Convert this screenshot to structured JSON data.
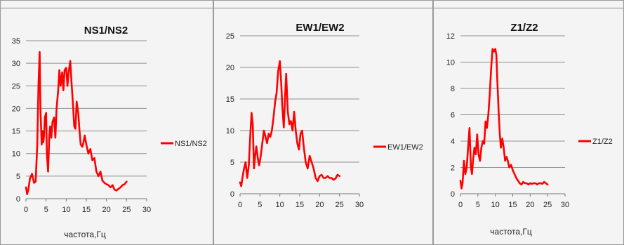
{
  "chart_data": [
    {
      "type": "line",
      "title": "NS1/NS2",
      "xlabel": "частота,Гц",
      "ylabel": "",
      "xlim": [
        0,
        30
      ],
      "ylim": [
        0,
        35
      ],
      "xticks": [
        0,
        5,
        10,
        15,
        20,
        25,
        30
      ],
      "yticks": [
        0,
        5,
        10,
        15,
        20,
        25,
        30,
        35
      ],
      "grid": true,
      "legend": "right",
      "series": [
        {
          "name": "NS1/NS2",
          "color": "#ff0000",
          "x": [
            0.0,
            0.3,
            0.6,
            1.0,
            1.5,
            2.0,
            2.4,
            2.8,
            3.1,
            3.4,
            3.6,
            3.9,
            4.1,
            4.3,
            4.5,
            4.7,
            5.0,
            5.2,
            5.5,
            5.8,
            6.0,
            6.3,
            6.6,
            7.0,
            7.3,
            7.6,
            8.0,
            8.3,
            8.6,
            9.0,
            9.3,
            9.6,
            10.0,
            10.3,
            10.6,
            11.0,
            11.3,
            11.6,
            12.0,
            12.3,
            12.6,
            13.0,
            13.3,
            13.6,
            14.0,
            14.3,
            14.6,
            15.0,
            15.5,
            16.0,
            16.5,
            17.0,
            17.5,
            18.0,
            18.5,
            19.0,
            19.5,
            20.0,
            20.5,
            21.0,
            21.5,
            22.0,
            22.5,
            23.0,
            23.5,
            24.0,
            24.5,
            25.0
          ],
          "values": [
            2.5,
            1.0,
            2.0,
            4.5,
            5.5,
            3.5,
            3.8,
            12.0,
            25.0,
            32.5,
            20.0,
            12.0,
            15.0,
            12.5,
            14.0,
            18.0,
            19.0,
            10.0,
            6.0,
            14.0,
            16.0,
            13.5,
            17.0,
            18.0,
            13.5,
            20.0,
            24.0,
            28.5,
            25.0,
            28.0,
            24.0,
            28.5,
            29.0,
            25.0,
            28.0,
            30.5,
            26.0,
            22.0,
            16.0,
            15.5,
            21.5,
            19.0,
            15.0,
            12.0,
            11.5,
            12.5,
            14.0,
            12.0,
            10.0,
            11.0,
            8.5,
            9.0,
            6.0,
            5.0,
            6.0,
            4.0,
            3.5,
            3.2,
            3.0,
            2.5,
            3.0,
            2.0,
            1.8,
            2.2,
            2.5,
            3.0,
            3.2,
            3.8
          ]
        }
      ]
    },
    {
      "type": "line",
      "title": "EW1/EW2",
      "xlabel": "",
      "ylabel": "",
      "xlim": [
        0,
        30
      ],
      "ylim": [
        0,
        25
      ],
      "xticks": [
        0,
        5,
        10,
        15,
        20,
        25,
        30
      ],
      "yticks": [
        0,
        5,
        10,
        15,
        20,
        25
      ],
      "grid": true,
      "legend": "right",
      "series": [
        {
          "name": "EW1/EW2",
          "color": "#ff0000",
          "x": [
            0.0,
            0.3,
            0.6,
            1.0,
            1.4,
            1.8,
            2.2,
            2.5,
            2.9,
            3.2,
            3.5,
            3.8,
            4.1,
            4.5,
            4.8,
            5.2,
            5.6,
            6.0,
            6.4,
            6.8,
            7.2,
            7.6,
            8.0,
            8.4,
            8.8,
            9.2,
            9.6,
            10.0,
            10.3,
            10.6,
            11.0,
            11.3,
            11.6,
            12.0,
            12.4,
            12.8,
            13.2,
            13.6,
            14.0,
            14.4,
            14.8,
            15.2,
            15.6,
            16.0,
            16.5,
            17.0,
            17.5,
            18.0,
            18.5,
            19.0,
            19.5,
            20.0,
            20.5,
            21.0,
            21.5,
            22.0,
            22.5,
            23.0,
            23.5,
            24.0,
            24.5,
            25.0
          ],
          "values": [
            1.8,
            1.2,
            2.5,
            4.0,
            5.0,
            2.5,
            4.5,
            8.5,
            12.8,
            11.0,
            4.0,
            6.0,
            7.5,
            5.5,
            4.5,
            6.0,
            8.0,
            10.0,
            9.0,
            8.0,
            9.5,
            9.0,
            10.0,
            12.0,
            14.5,
            16.0,
            19.5,
            21.0,
            18.0,
            14.0,
            10.5,
            15.0,
            19.0,
            13.0,
            11.0,
            11.5,
            10.0,
            13.0,
            10.0,
            8.0,
            7.0,
            9.5,
            10.0,
            7.5,
            5.0,
            4.0,
            6.0,
            5.0,
            4.0,
            2.5,
            2.0,
            2.8,
            3.0,
            2.5,
            2.5,
            2.8,
            2.5,
            2.5,
            2.2,
            2.4,
            3.0,
            2.8
          ]
        }
      ]
    },
    {
      "type": "line",
      "title": "Z1/Z2",
      "xlabel": "частота,Гц",
      "ylabel": "",
      "xlim": [
        0,
        30
      ],
      "ylim": [
        0,
        12
      ],
      "xticks": [
        0,
        5,
        10,
        15,
        20,
        25,
        30
      ],
      "yticks": [
        0,
        2,
        4,
        6,
        8,
        10,
        12
      ],
      "grid": true,
      "legend": "right",
      "series": [
        {
          "name": "Z1/Z2",
          "color": "#ff0000",
          "x": [
            0.0,
            0.3,
            0.6,
            1.0,
            1.4,
            1.8,
            2.2,
            2.6,
            3.0,
            3.3,
            3.6,
            4.0,
            4.4,
            4.8,
            5.2,
            5.6,
            6.0,
            6.4,
            6.8,
            7.2,
            7.6,
            8.0,
            8.4,
            8.8,
            9.2,
            9.6,
            10.0,
            10.3,
            10.6,
            11.0,
            11.3,
            11.6,
            12.0,
            12.4,
            12.8,
            13.2,
            13.6,
            14.0,
            14.5,
            15.0,
            15.5,
            16.0,
            16.5,
            17.0,
            17.5,
            18.0,
            18.5,
            19.0,
            19.5,
            20.0,
            20.5,
            21.0,
            21.5,
            22.0,
            22.5,
            23.0,
            23.5,
            24.0,
            24.5,
            25.0
          ],
          "values": [
            1.0,
            0.4,
            0.8,
            2.5,
            1.5,
            2.0,
            3.5,
            5.0,
            2.0,
            1.5,
            2.5,
            3.5,
            3.0,
            4.5,
            3.0,
            2.5,
            3.5,
            4.0,
            3.8,
            5.5,
            5.0,
            6.0,
            7.5,
            9.5,
            11.0,
            10.8,
            11.0,
            10.5,
            8.5,
            6.0,
            4.5,
            3.5,
            4.2,
            3.5,
            2.5,
            2.8,
            2.5,
            2.0,
            2.2,
            1.8,
            1.5,
            1.2,
            1.0,
            0.8,
            0.7,
            0.9,
            0.8,
            0.8,
            0.7,
            0.8,
            0.75,
            0.8,
            0.8,
            0.7,
            0.8,
            0.8,
            0.75,
            0.9,
            0.8,
            0.7
          ]
        }
      ]
    }
  ]
}
